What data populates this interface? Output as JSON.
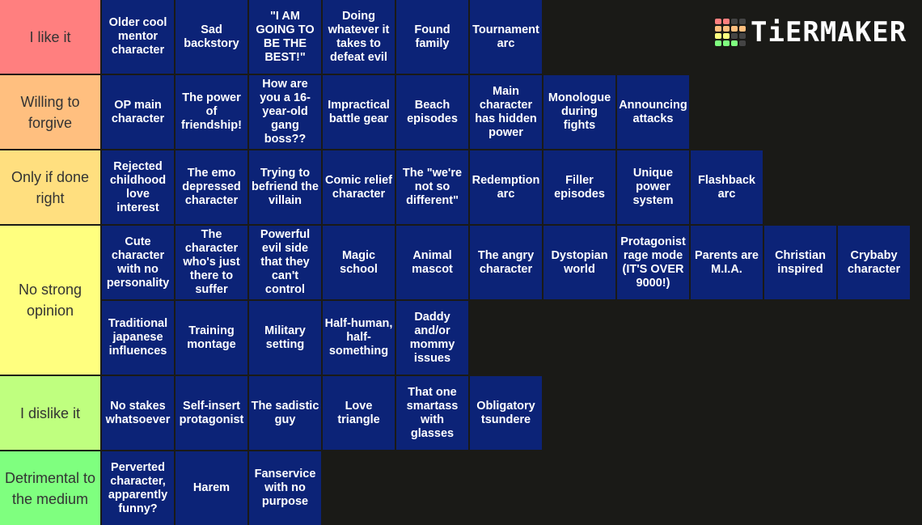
{
  "logo": {
    "text": "TiERMAKER",
    "grid": [
      "#ff7f7f",
      "#ff7f7f",
      "#444",
      "#444",
      "#ffbf7f",
      "#ffbf7f",
      "#ffbf7f",
      "#ffbf7f",
      "#ffff7f",
      "#ffff7f",
      "#444",
      "#444",
      "#7fff7f",
      "#7fff7f",
      "#7fff7f",
      "#444"
    ]
  },
  "colors": {
    "background": "#1a1a17",
    "tile": "#0c2377"
  },
  "tiers": [
    {
      "label": "I like it",
      "color": "#ff7f7f",
      "items": [
        "Older cool mentor character",
        "Sad backstory",
        "\"I AM GOING TO BE THE BEST!\"",
        "Doing whatever it takes to defeat evil",
        "Found family",
        "Tournament arc"
      ]
    },
    {
      "label": "Willing to forgive",
      "color": "#ffbf7f",
      "items": [
        "OP main character",
        "The power of friendship!",
        "How are you a 16-year-old gang boss??",
        "Impractical battle gear",
        "Beach episodes",
        "Main character has hidden power",
        "Monologue during fights",
        "Announcing attacks"
      ]
    },
    {
      "label": "Only if done right",
      "color": "#ffdf7f",
      "items": [
        "Rejected childhood love interest",
        "The emo depressed character",
        "Trying to befriend the villain",
        "Comic relief character",
        "The \"we're not so different\"",
        "Redemption arc",
        "Filler episodes",
        "Unique power system",
        "Flashback arc"
      ]
    },
    {
      "label": "No strong opinion",
      "color": "#ffff7f",
      "items": [
        "Cute character with no personality",
        "The character who's just there to suffer",
        "Powerful evil side that they can't control",
        "Magic school",
        "Animal mascot",
        "The angry character",
        "Dystopian world",
        "Protagonist rage mode (IT'S OVER 9000!)",
        "Parents are M.I.A.",
        "Christian inspired",
        "Crybaby character",
        "Traditional japanese influences",
        "Training montage",
        "Military setting",
        "Half-human, half-something",
        "Daddy and/or mommy issues"
      ]
    },
    {
      "label": "I dislike it",
      "color": "#bfff7f",
      "items": [
        "No stakes whatsoever",
        "Self-insert protagonist",
        "The sadistic guy",
        "Love triangle",
        "That one smartass with glasses",
        "Obligatory tsundere"
      ]
    },
    {
      "label": "Detrimental to the medium",
      "color": "#7fff7f",
      "items": [
        "Perverted character, apparently funny?",
        "Harem",
        "Fanservice with no purpose"
      ]
    }
  ]
}
